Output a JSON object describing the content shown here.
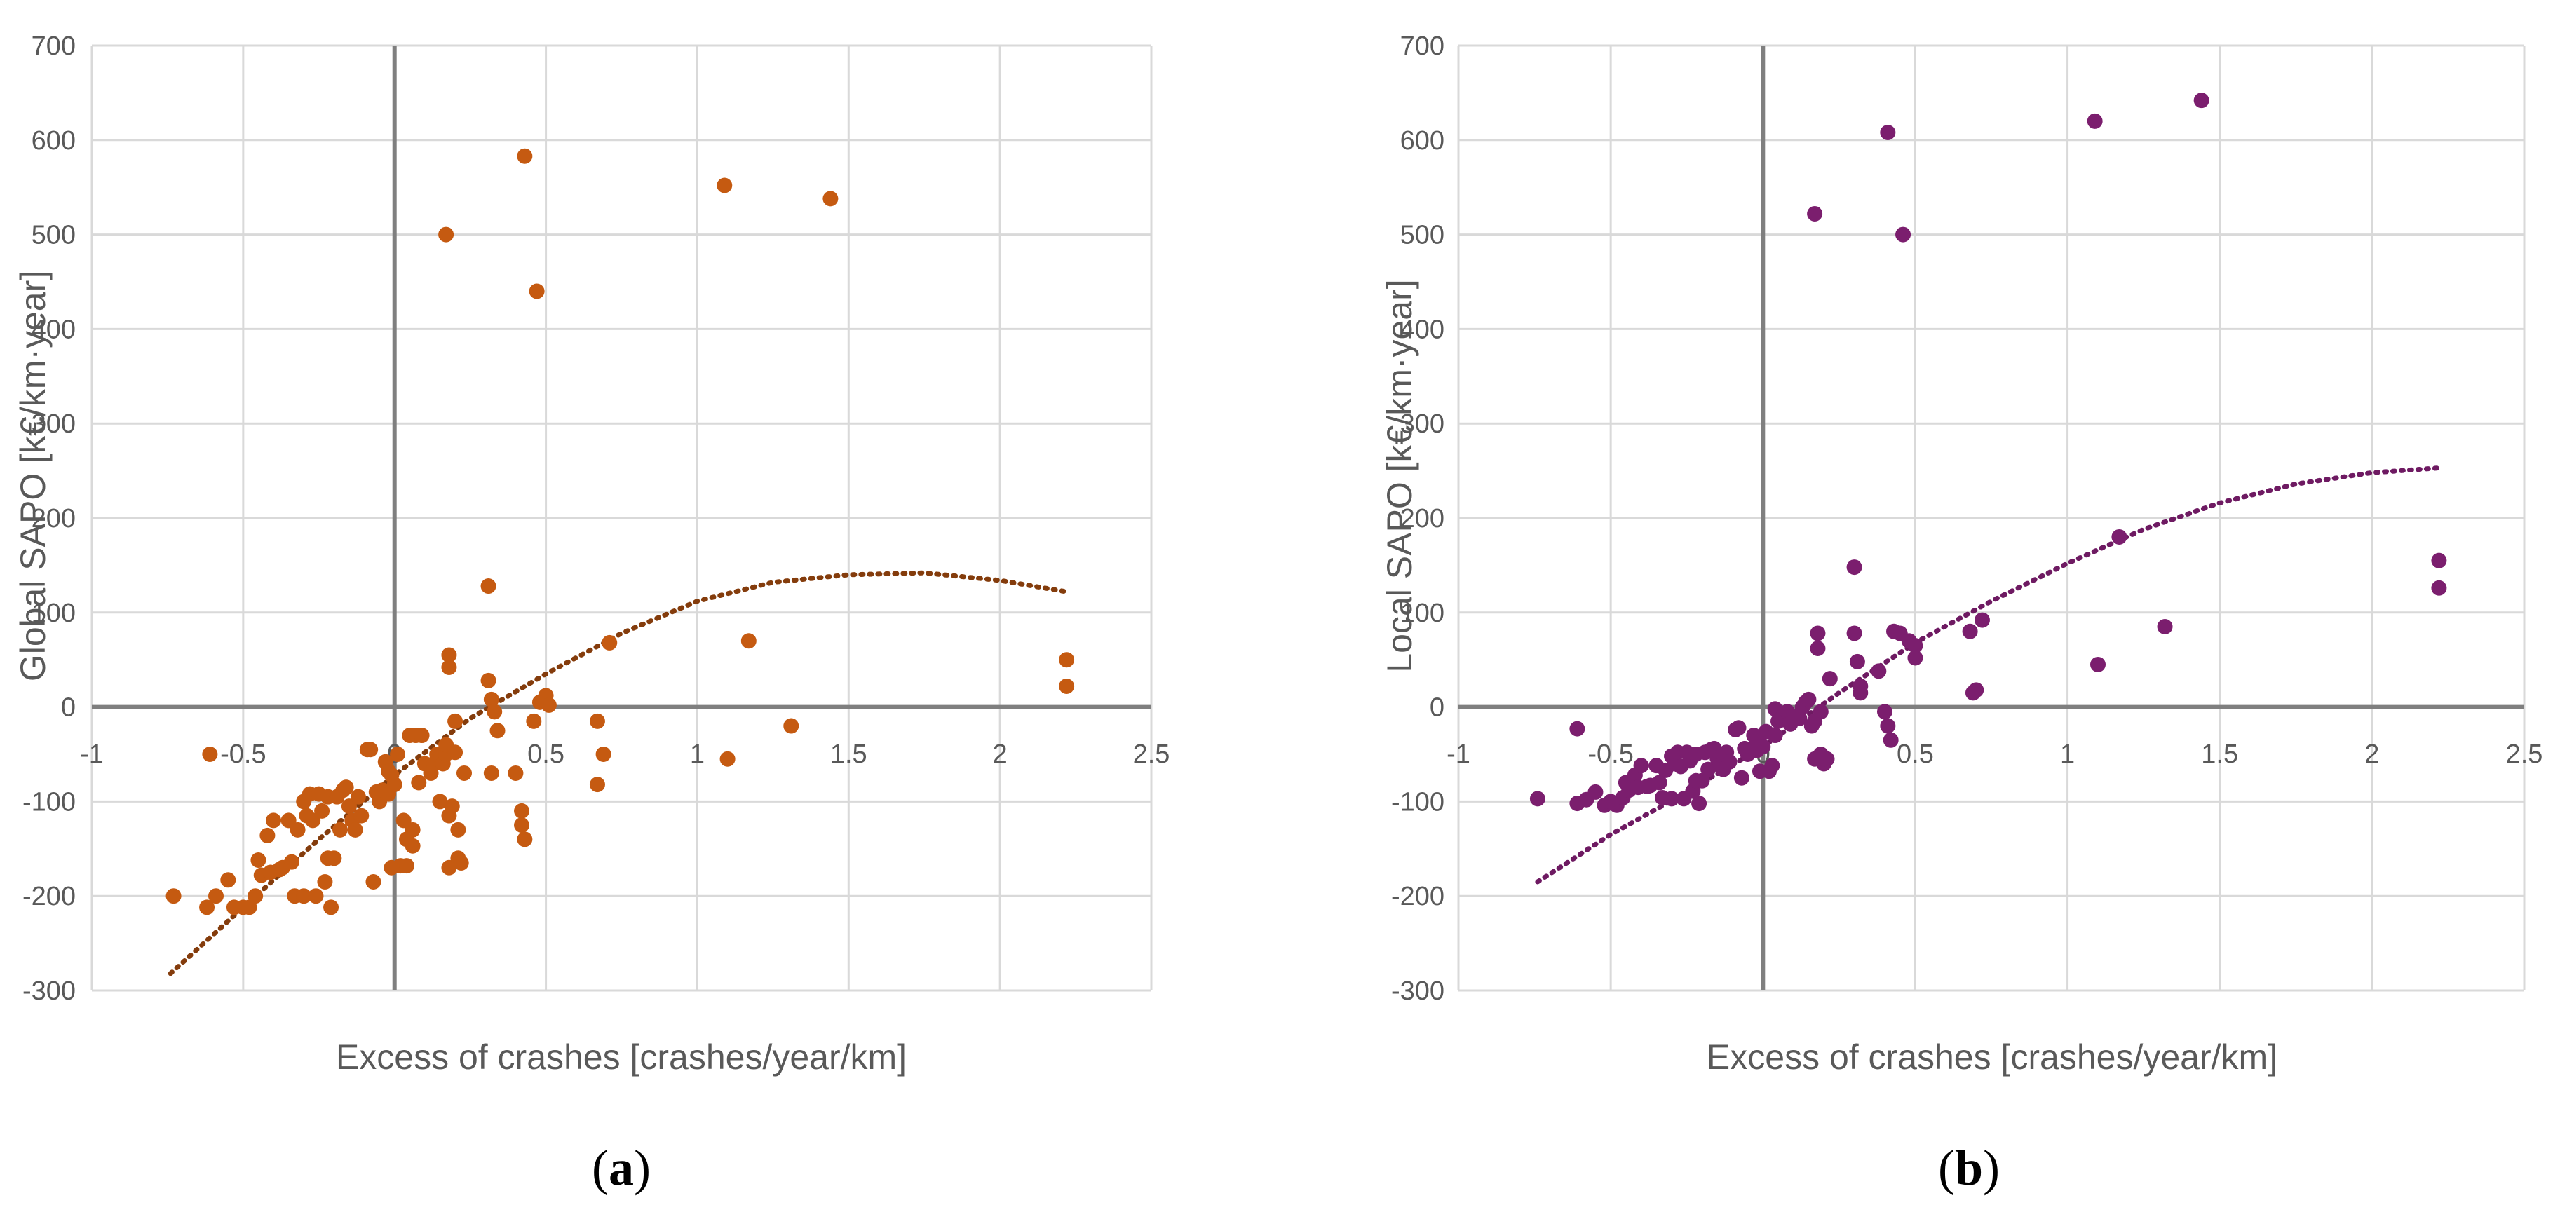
{
  "chart_data": [
    {
      "type": "scatter",
      "panel": "a",
      "panel_label": "a",
      "xlabel": "Excess of crashes [crashes/year/km]",
      "ylabel": "Global SAPO [k€/km·year]",
      "xlim": [
        -1,
        2.5
      ],
      "ylim": [
        -300,
        700
      ],
      "xticks": [
        -1,
        -0.5,
        0,
        0.5,
        1,
        1.5,
        2,
        2.5
      ],
      "xtick_labels": [
        "-1",
        "-0.5",
        "0",
        "0.5",
        "1",
        "1.5",
        "2",
        "2.5"
      ],
      "yticks": [
        -300,
        -200,
        -100,
        0,
        100,
        200,
        300,
        400,
        500,
        600,
        700
      ],
      "ytick_labels": [
        "-300",
        "-200",
        "-100",
        "0",
        "100",
        "200",
        "300",
        "400",
        "500",
        "600",
        "700"
      ],
      "grid": true,
      "point_color": "#C55A11",
      "trendline": {
        "type": "polynomial",
        "style": "dotted",
        "color": "#843C0C",
        "x": [
          -0.74,
          -0.5,
          -0.25,
          0,
          0.25,
          0.5,
          0.75,
          1,
          1.25,
          1.5,
          1.75,
          2,
          2.22
        ],
        "y": [
          -282,
          -212,
          -140,
          -72,
          -12,
          35,
          78,
          112,
          132,
          140,
          142,
          134,
          122
        ]
      },
      "points": [
        [
          -0.73,
          -200
        ],
        [
          -0.61,
          -50
        ],
        [
          -0.62,
          -212
        ],
        [
          -0.59,
          -200
        ],
        [
          -0.55,
          -183
        ],
        [
          -0.53,
          -212
        ],
        [
          -0.5,
          -212
        ],
        [
          -0.48,
          -212
        ],
        [
          -0.46,
          -200
        ],
        [
          -0.45,
          -162
        ],
        [
          -0.44,
          -178
        ],
        [
          -0.42,
          -136
        ],
        [
          -0.41,
          -175
        ],
        [
          -0.4,
          -120
        ],
        [
          -0.38,
          -172
        ],
        [
          -0.37,
          -170
        ],
        [
          -0.35,
          -120
        ],
        [
          -0.34,
          -164
        ],
        [
          -0.33,
          -200
        ],
        [
          -0.32,
          -130
        ],
        [
          -0.3,
          -200
        ],
        [
          -0.3,
          -100
        ],
        [
          -0.29,
          -115
        ],
        [
          -0.28,
          -92
        ],
        [
          -0.27,
          -120
        ],
        [
          -0.26,
          -200
        ],
        [
          -0.25,
          -92
        ],
        [
          -0.24,
          -110
        ],
        [
          -0.23,
          -185
        ],
        [
          -0.22,
          -160
        ],
        [
          -0.22,
          -95
        ],
        [
          -0.21,
          -212
        ],
        [
          -0.2,
          -160
        ],
        [
          -0.19,
          -95
        ],
        [
          -0.18,
          -130
        ],
        [
          -0.17,
          -88
        ],
        [
          -0.16,
          -85
        ],
        [
          -0.15,
          -105
        ],
        [
          -0.14,
          -120
        ],
        [
          -0.13,
          -130
        ],
        [
          -0.12,
          -95
        ],
        [
          -0.11,
          -115
        ],
        [
          -0.09,
          -45
        ],
        [
          -0.08,
          -45
        ],
        [
          -0.07,
          -185
        ],
        [
          -0.06,
          -90
        ],
        [
          -0.05,
          -100
        ],
        [
          -0.04,
          -88
        ],
        [
          -0.03,
          -58
        ],
        [
          -0.02,
          -92
        ],
        [
          -0.02,
          -68
        ],
        [
          -0.01,
          -72
        ],
        [
          0.0,
          -82
        ],
        [
          -0.01,
          -170
        ],
        [
          0.01,
          -50
        ],
        [
          0.02,
          -168
        ],
        [
          0.03,
          -120
        ],
        [
          0.04,
          -168
        ],
        [
          0.04,
          -140
        ],
        [
          0.05,
          -30
        ],
        [
          0.06,
          -147
        ],
        [
          0.06,
          -130
        ],
        [
          0.07,
          -30
        ],
        [
          0.08,
          -80
        ],
        [
          0.09,
          -30
        ],
        [
          0.1,
          -60
        ],
        [
          0.12,
          -70
        ],
        [
          0.13,
          -60
        ],
        [
          0.14,
          -50
        ],
        [
          0.15,
          -100
        ],
        [
          0.16,
          -60
        ],
        [
          0.17,
          -50
        ],
        [
          0.17,
          -40
        ],
        [
          0.18,
          -115
        ],
        [
          0.18,
          -170
        ],
        [
          0.19,
          -105
        ],
        [
          0.2,
          -48
        ],
        [
          0.2,
          -15
        ],
        [
          0.18,
          55
        ],
        [
          0.18,
          42
        ],
        [
          0.21,
          -160
        ],
        [
          0.21,
          -130
        ],
        [
          0.22,
          -165
        ],
        [
          0.23,
          -70
        ],
        [
          0.17,
          500
        ],
        [
          0.31,
          128
        ],
        [
          0.31,
          28
        ],
        [
          0.32,
          -70
        ],
        [
          0.32,
          8
        ],
        [
          0.33,
          -5
        ],
        [
          0.34,
          -25
        ],
        [
          0.4,
          -70
        ],
        [
          0.42,
          -110
        ],
        [
          0.42,
          -125
        ],
        [
          0.43,
          -140
        ],
        [
          0.43,
          583
        ],
        [
          0.46,
          -15
        ],
        [
          0.47,
          440
        ],
        [
          0.48,
          5
        ],
        [
          0.5,
          12
        ],
        [
          0.51,
          2
        ],
        [
          0.67,
          -15
        ],
        [
          0.67,
          -82
        ],
        [
          0.69,
          -50
        ],
        [
          0.71,
          68
        ],
        [
          1.09,
          552
        ],
        [
          1.1,
          -55
        ],
        [
          1.17,
          70
        ],
        [
          1.31,
          -20
        ],
        [
          1.44,
          538
        ],
        [
          2.22,
          50
        ],
        [
          2.22,
          22
        ]
      ]
    },
    {
      "type": "scatter",
      "panel": "b",
      "panel_label": "b",
      "xlabel": "Excess of crashes [crashes/year/km]",
      "ylabel": "Local SAPO [k€/km·year]",
      "xlim": [
        -1,
        2.5
      ],
      "ylim": [
        -300,
        700
      ],
      "xticks": [
        -1,
        -0.5,
        0,
        0.5,
        1,
        1.5,
        2,
        2.5
      ],
      "xtick_labels": [
        "-1",
        "-0.5",
        "0",
        "0.5",
        "1",
        "1.5",
        "2",
        "2.5"
      ],
      "yticks": [
        -300,
        -200,
        -100,
        0,
        100,
        200,
        300,
        400,
        500,
        600,
        700
      ],
      "ytick_labels": [
        "-300",
        "-200",
        "-100",
        "0",
        "100",
        "200",
        "300",
        "400",
        "500",
        "600",
        "700"
      ],
      "grid": true,
      "point_color": "#7B1E6E",
      "trendline": {
        "type": "polynomial",
        "style": "dotted",
        "color": "#6E1A62",
        "x": [
          -0.74,
          -0.5,
          -0.25,
          0,
          0.25,
          0.5,
          0.75,
          1,
          1.25,
          1.5,
          1.75,
          2,
          2.22
        ],
        "y": [
          -185,
          -135,
          -90,
          -42,
          15,
          68,
          112,
          152,
          188,
          216,
          236,
          248,
          253
        ]
      },
      "points": [
        [
          -0.74,
          -97
        ],
        [
          -0.61,
          -23
        ],
        [
          -0.61,
          -102
        ],
        [
          -0.58,
          -98
        ],
        [
          -0.55,
          -90
        ],
        [
          -0.52,
          -104
        ],
        [
          -0.5,
          -100
        ],
        [
          -0.48,
          -104
        ],
        [
          -0.46,
          -96
        ],
        [
          -0.45,
          -80
        ],
        [
          -0.44,
          -88
        ],
        [
          -0.42,
          -72
        ],
        [
          -0.41,
          -85
        ],
        [
          -0.4,
          -62
        ],
        [
          -0.38,
          -84
        ],
        [
          -0.37,
          -83
        ],
        [
          -0.35,
          -62
        ],
        [
          -0.34,
          -80
        ],
        [
          -0.33,
          -96
        ],
        [
          -0.32,
          -67
        ],
        [
          -0.3,
          -97
        ],
        [
          -0.3,
          -52
        ],
        [
          -0.29,
          -60
        ],
        [
          -0.28,
          -48
        ],
        [
          -0.27,
          -63
        ],
        [
          -0.26,
          -97
        ],
        [
          -0.25,
          -48
        ],
        [
          -0.24,
          -57
        ],
        [
          -0.23,
          -89
        ],
        [
          -0.22,
          -78
        ],
        [
          -0.22,
          -50
        ],
        [
          -0.21,
          -102
        ],
        [
          -0.2,
          -78
        ],
        [
          -0.19,
          -48
        ],
        [
          -0.18,
          -66
        ],
        [
          -0.17,
          -45
        ],
        [
          -0.16,
          -44
        ],
        [
          -0.15,
          -54
        ],
        [
          -0.14,
          -62
        ],
        [
          -0.13,
          -66
        ],
        [
          -0.12,
          -48
        ],
        [
          -0.11,
          -58
        ],
        [
          -0.09,
          -24
        ],
        [
          -0.08,
          -22
        ],
        [
          -0.07,
          -75
        ],
        [
          -0.06,
          -44
        ],
        [
          -0.05,
          -50
        ],
        [
          -0.04,
          -45
        ],
        [
          -0.03,
          -30
        ],
        [
          -0.02,
          -46
        ],
        [
          -0.02,
          -36
        ],
        [
          -0.01,
          -38
        ],
        [
          0.0,
          -42
        ],
        [
          -0.01,
          -68
        ],
        [
          0.01,
          -26
        ],
        [
          0.02,
          -68
        ],
        [
          0.03,
          -62
        ],
        [
          0.04,
          -30
        ],
        [
          0.04,
          -2
        ],
        [
          0.05,
          -15
        ],
        [
          0.06,
          -12
        ],
        [
          0.07,
          -8
        ],
        [
          0.08,
          -5
        ],
        [
          0.09,
          -18
        ],
        [
          0.1,
          -10
        ],
        [
          0.12,
          -12
        ],
        [
          0.13,
          0
        ],
        [
          0.14,
          5
        ],
        [
          0.15,
          8
        ],
        [
          0.16,
          -20
        ],
        [
          0.17,
          -15
        ],
        [
          0.17,
          -55
        ],
        [
          0.18,
          62
        ],
        [
          0.18,
          78
        ],
        [
          0.19,
          -5
        ],
        [
          0.19,
          -50
        ],
        [
          0.2,
          -60
        ],
        [
          0.21,
          -55
        ],
        [
          0.17,
          522
        ],
        [
          0.22,
          30
        ],
        [
          0.3,
          148
        ],
        [
          0.3,
          78
        ],
        [
          0.31,
          48
        ],
        [
          0.32,
          22
        ],
        [
          0.32,
          15
        ],
        [
          0.38,
          38
        ],
        [
          0.4,
          -5
        ],
        [
          0.41,
          -20
        ],
        [
          0.42,
          -35
        ],
        [
          0.41,
          608
        ],
        [
          0.43,
          80
        ],
        [
          0.45,
          78
        ],
        [
          0.46,
          500
        ],
        [
          0.48,
          70
        ],
        [
          0.5,
          52
        ],
        [
          0.5,
          65
        ],
        [
          0.68,
          80
        ],
        [
          0.69,
          15
        ],
        [
          0.7,
          18
        ],
        [
          0.72,
          92
        ],
        [
          1.09,
          620
        ],
        [
          1.1,
          45
        ],
        [
          1.17,
          180
        ],
        [
          1.32,
          85
        ],
        [
          1.44,
          642
        ],
        [
          2.22,
          155
        ],
        [
          2.22,
          126
        ]
      ]
    }
  ]
}
